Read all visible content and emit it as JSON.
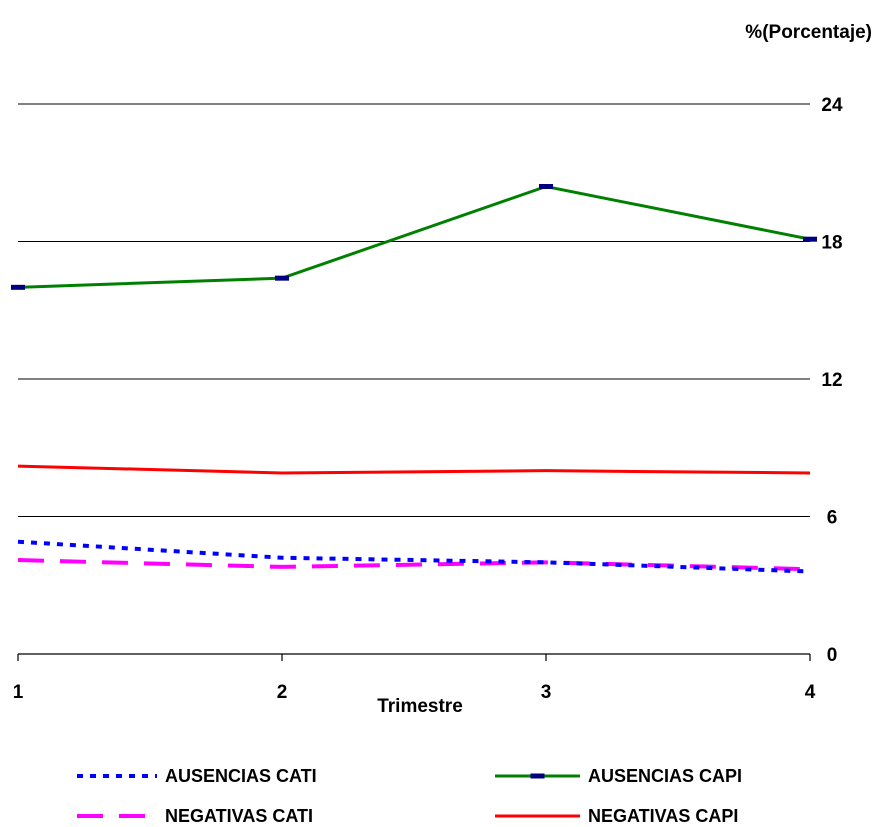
{
  "chart_data": {
    "type": "line",
    "x": [
      1,
      2,
      3,
      4
    ],
    "xlabel": "Trimestre",
    "ylabel": "%(Porcentaje)",
    "ylim": [
      0,
      24
    ],
    "yticks": [
      0,
      6,
      12,
      18,
      24
    ],
    "grid": true,
    "y_axis_position": "right",
    "legend_position": "bottom",
    "series": [
      {
        "name": "AUSENCIAS CATI",
        "values": [
          4.9,
          4.2,
          4.0,
          3.6
        ],
        "color": "#0000ff",
        "style": "dotted"
      },
      {
        "name": "AUSENCIAS CAPI",
        "values": [
          16.0,
          16.4,
          20.4,
          18.1
        ],
        "color": "#008000",
        "style": "solid-marker",
        "marker_color": "#000080"
      },
      {
        "name": "NEGATIVAS CATI",
        "values": [
          4.1,
          3.8,
          4.0,
          3.7
        ],
        "color": "#ff00ff",
        "style": "dashed"
      },
      {
        "name": "NEGATIVAS CAPI",
        "values": [
          8.2,
          7.9,
          8.0,
          7.9
        ],
        "color": "#ff0000",
        "style": "solid"
      }
    ]
  }
}
